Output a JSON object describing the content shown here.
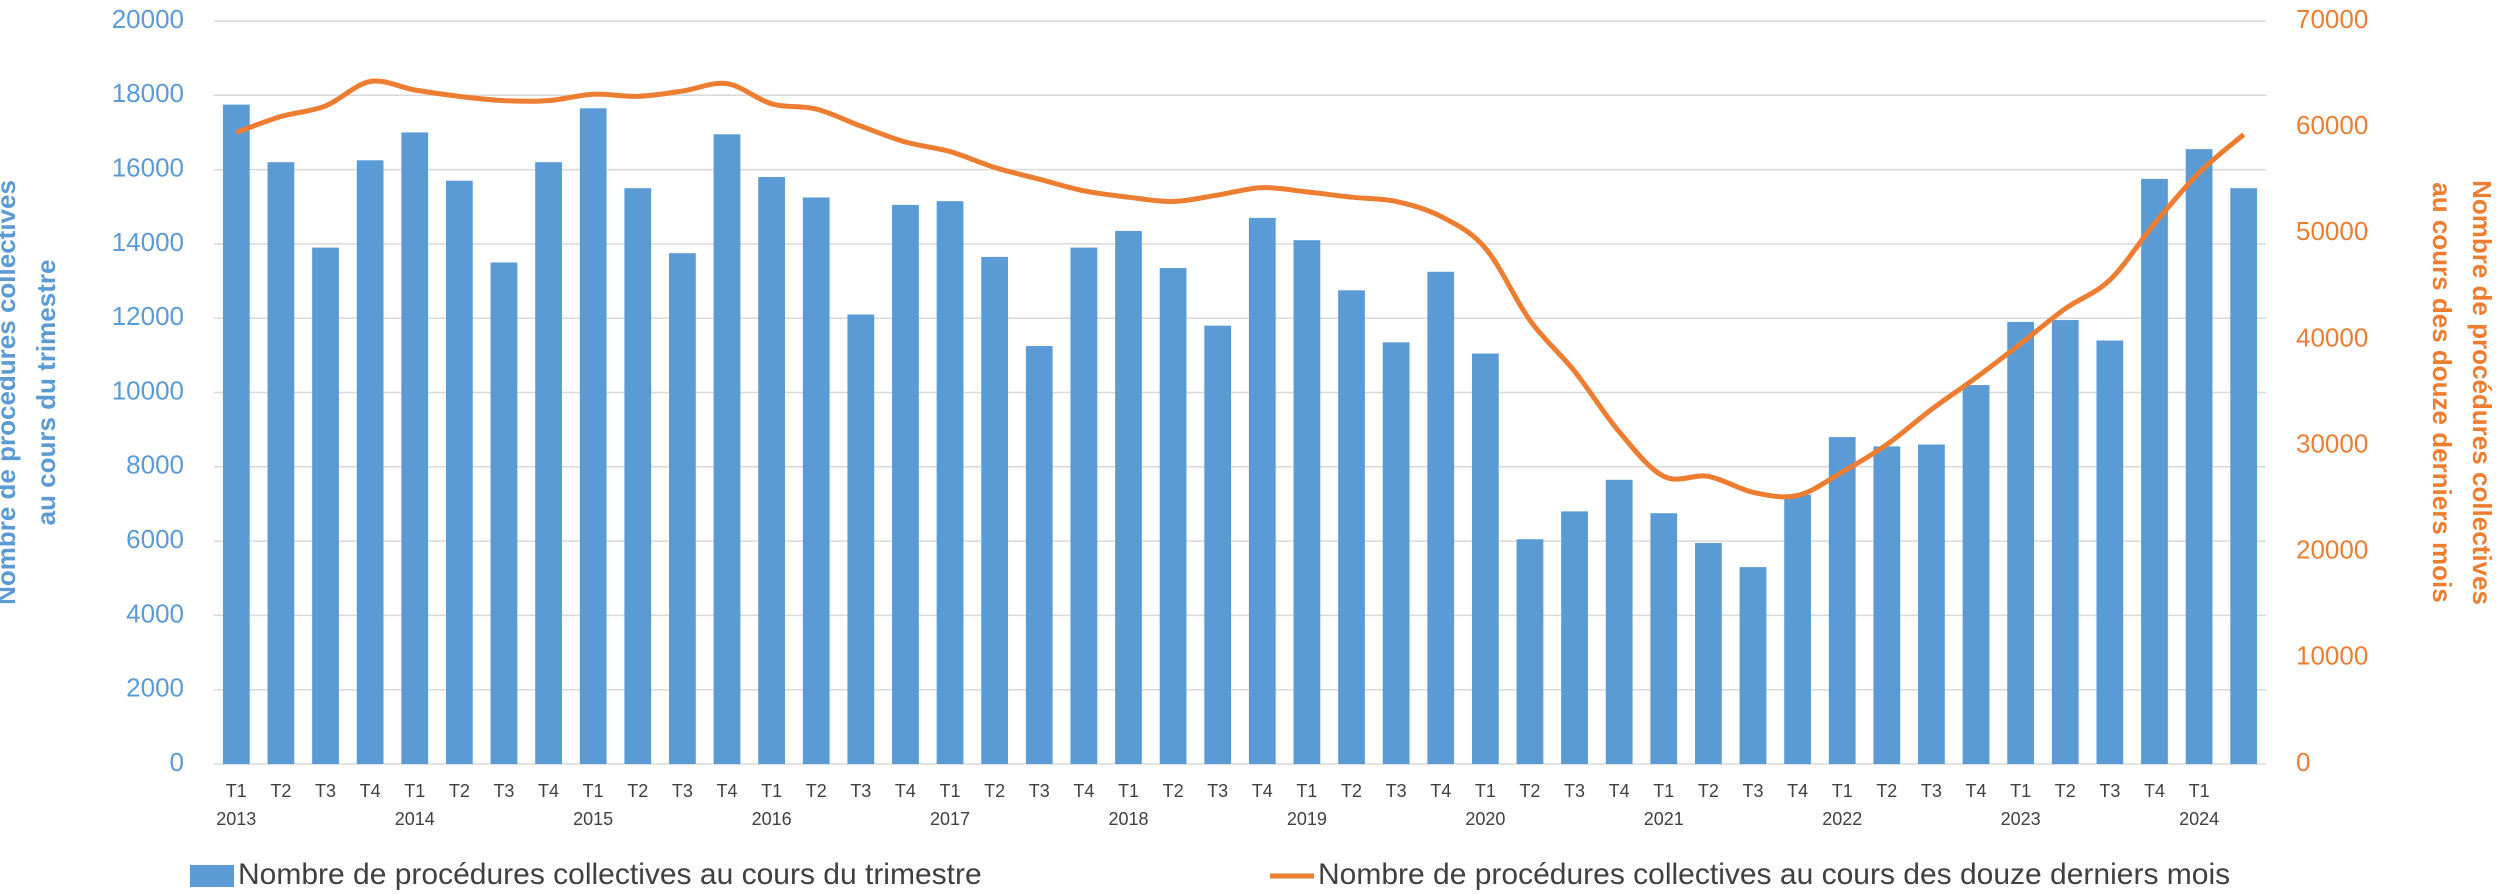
{
  "chart_data": {
    "type": "bar_line",
    "categories": [
      "T1",
      "T2",
      "T3",
      "T4",
      "T1",
      "T2",
      "T3",
      "T4",
      "T1",
      "T2",
      "T3",
      "T4",
      "T1",
      "T2",
      "T3",
      "T4",
      "T1",
      "T2",
      "T3",
      "T4",
      "T1",
      "T2",
      "T3",
      "T4",
      "T1",
      "T2",
      "T3",
      "T4",
      "T1",
      "T2",
      "T3",
      "T4",
      "T1",
      "T2",
      "T3",
      "T4",
      "T1",
      "T2",
      "T3",
      "T4",
      "T1",
      "T2",
      "T3",
      "T4",
      "T1",
      null
    ],
    "years": [
      "2013",
      null,
      null,
      null,
      "2014",
      null,
      null,
      null,
      "2015",
      null,
      null,
      null,
      "2016",
      null,
      null,
      null,
      "2017",
      null,
      null,
      null,
      "2018",
      null,
      null,
      null,
      "2019",
      null,
      null,
      null,
      "2020",
      null,
      null,
      null,
      "2021",
      null,
      null,
      null,
      "2022",
      null,
      null,
      null,
      "2023",
      null,
      null,
      null,
      "2024",
      null
    ],
    "y_label": [
      "Nombre de procédures collectives",
      "au cours du trimestre"
    ],
    "y2_label": [
      "Nombre de procédures collectives",
      "au cours des douze derniers mois"
    ],
    "series": [
      {
        "name": "Nombre de procédures collectives au cours du trimestre",
        "color": "#5b9bd5",
        "kind": "bar",
        "axis": "y",
        "values": [
          17750,
          16200,
          13900,
          16250,
          17000,
          15700,
          13500,
          16200,
          17650,
          15500,
          13750,
          16950,
          15800,
          15250,
          12100,
          15050,
          15150,
          13650,
          11250,
          13900,
          14350,
          13350,
          11800,
          14700,
          14100,
          12750,
          11350,
          13250,
          11050,
          6050,
          6800,
          7650,
          6750,
          5950,
          5300,
          7250,
          8800,
          8550,
          8600,
          10200,
          11900,
          11950,
          11400,
          15750,
          16550,
          15500
        ]
      },
      {
        "name": "Nombre de procédures collectives au cours des douze derniers mois",
        "color": "#ed7d31",
        "kind": "line",
        "axis": "y2",
        "values": [
          59500,
          61000,
          62000,
          64300,
          63500,
          62900,
          62500,
          62500,
          63100,
          62900,
          63400,
          64100,
          62200,
          61700,
          60100,
          58600,
          57700,
          56200,
          55100,
          54000,
          53400,
          53000,
          53600,
          54300,
          53900,
          53400,
          53000,
          51600,
          48600,
          41800,
          37000,
          31300,
          27100,
          27100,
          25600,
          25300,
          27500,
          30100,
          33400,
          36400,
          39600,
          42900,
          45600,
          50900,
          55700,
          59300
        ]
      }
    ],
    "ylim": [
      0,
      20000
    ],
    "yticks": [
      0,
      2000,
      4000,
      6000,
      8000,
      10000,
      12000,
      14000,
      16000,
      18000,
      20000
    ],
    "y2lim": [
      0,
      70000
    ],
    "y2ticks": [
      0,
      10000,
      20000,
      30000,
      40000,
      50000,
      60000,
      70000
    ],
    "grid": true,
    "legend": "bottom"
  }
}
